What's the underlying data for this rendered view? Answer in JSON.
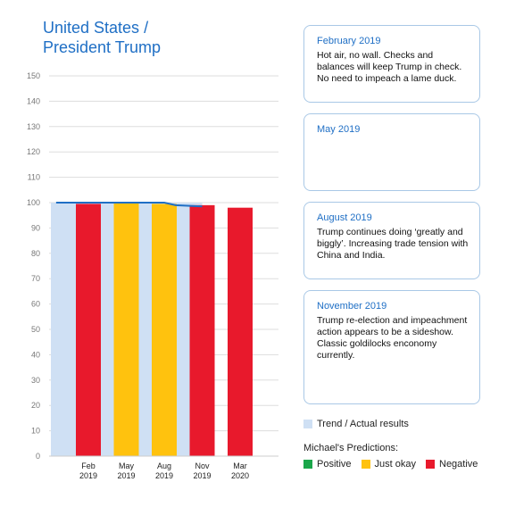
{
  "header": {
    "title_line1": "United States /",
    "title_line2": "President Trump"
  },
  "colors": {
    "trend": "#cfe0f4",
    "trend_line": "#1f6fc5",
    "positive": "#1aa64a",
    "just_okay": "#ffc20e",
    "negative": "#e8192c",
    "grid": "#dddddd",
    "axis_text": "#777777"
  },
  "chart_data": {
    "type": "bar",
    "categories": [
      "Feb\n2019",
      "May\n2019",
      "Aug\n2019",
      "Nov\n2019",
      "Mar\n2020"
    ],
    "ylim": [
      0,
      150
    ],
    "yticks": [
      0,
      10,
      20,
      30,
      40,
      50,
      60,
      70,
      80,
      90,
      100,
      110,
      120,
      130,
      140,
      150
    ],
    "trend_actual": {
      "name": "Trend / Actual results",
      "x_index": [
        0,
        1,
        2,
        3
      ],
      "values": [
        100,
        100,
        100,
        100
      ]
    },
    "trend_line": {
      "x_index": [
        -0.85,
        0,
        1,
        2,
        2.3,
        3
      ],
      "values": [
        100,
        100,
        100,
        100,
        99,
        98.5
      ]
    },
    "predictions": [
      {
        "category": "Feb\n2019",
        "value": 99.5,
        "rating": "negative"
      },
      {
        "category": "May\n2019",
        "value": 100,
        "rating": "just_okay"
      },
      {
        "category": "Aug\n2019",
        "value": 99.5,
        "rating": "just_okay"
      },
      {
        "category": "Nov\n2019",
        "value": 99,
        "rating": "negative"
      },
      {
        "category": "Mar\n2020",
        "value": 98,
        "rating": "negative"
      }
    ],
    "grid": true
  },
  "cards": [
    {
      "title": "February 2019",
      "text": "Hot air, no wall. Checks and balances will keep Trump in check. No need to impeach a lame duck."
    },
    {
      "title": "May 2019",
      "text": ""
    },
    {
      "title": "August 2019",
      "text": "Trump continues doing ‘greatly and biggly’. Increasing trade tension with China and India."
    },
    {
      "title": "November 2019",
      "text": "Trump re-election and impeachment action appears to be a sideshow. Classic goldilocks enconomy currently."
    }
  ],
  "legend": {
    "trend_label": "Trend / Actual results",
    "predictions_title": "Michael's Predictions:",
    "positive_label": "Positive",
    "just_okay_label": "Just okay",
    "negative_label": "Negative"
  }
}
